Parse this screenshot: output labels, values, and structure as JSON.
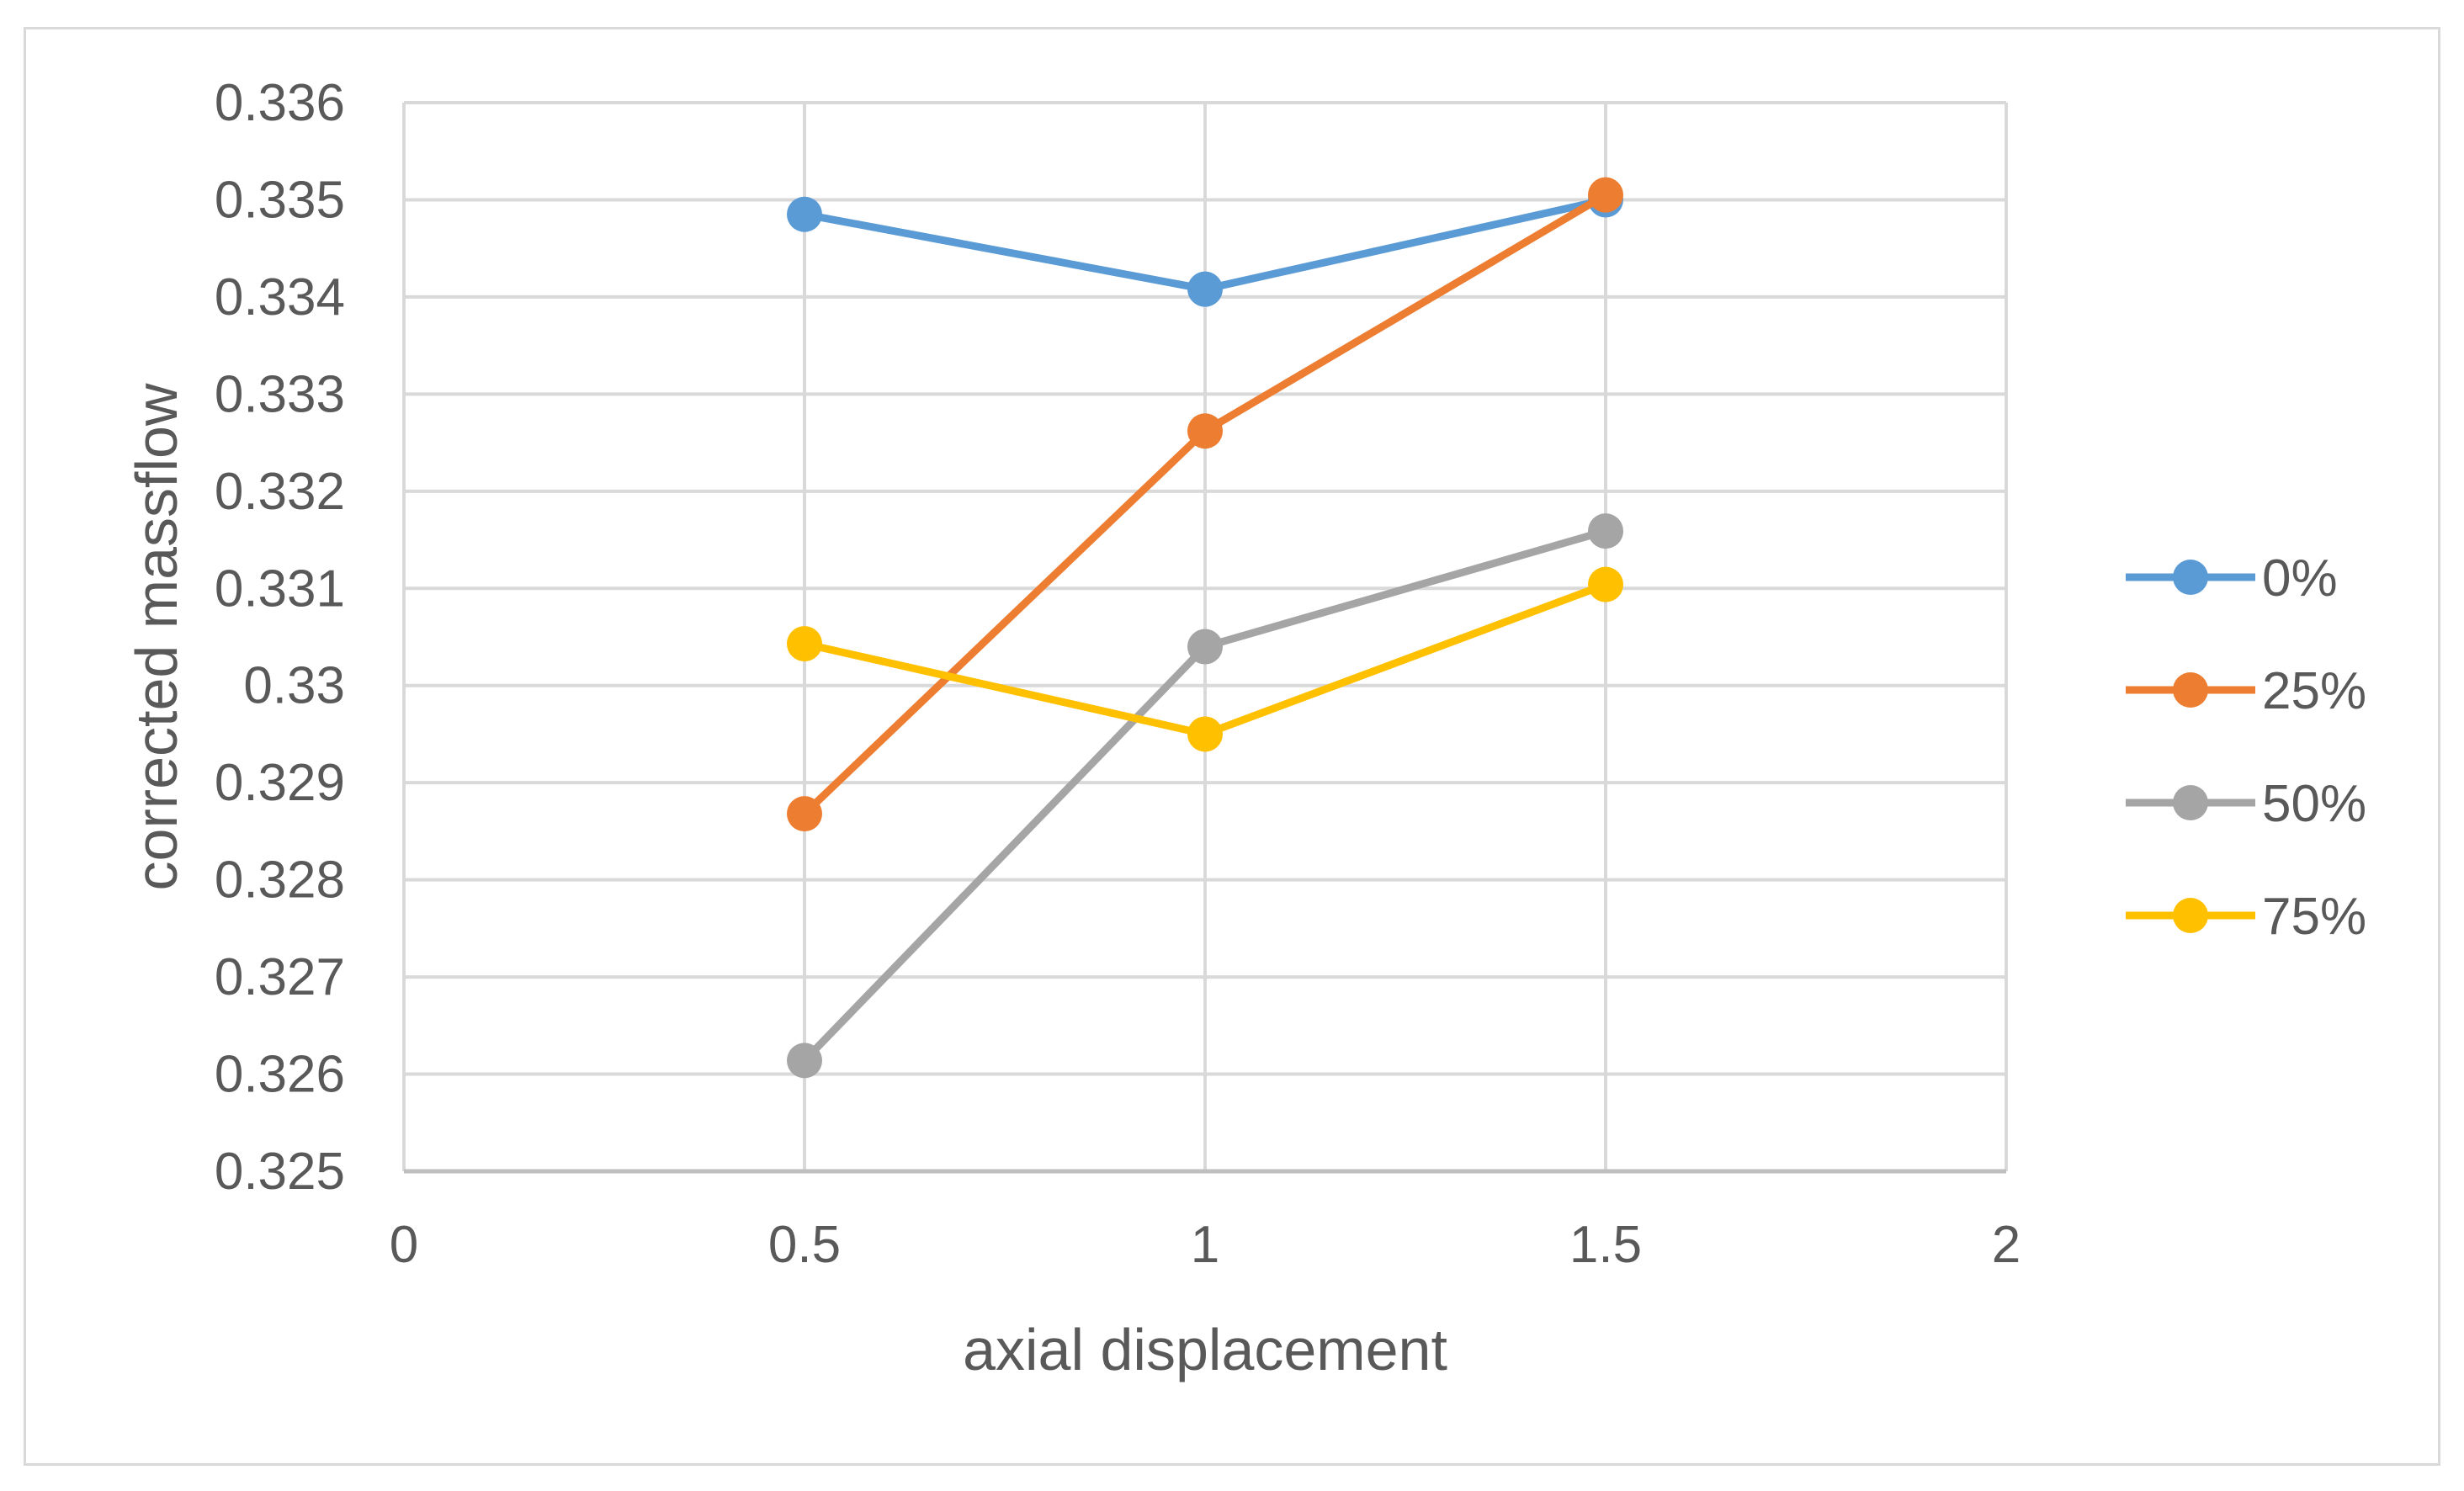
{
  "chart_data": {
    "type": "line",
    "xlabel": "axial displacement",
    "ylabel": "corrected massflow",
    "xlim": [
      0,
      2
    ],
    "ylim": [
      0.325,
      0.336
    ],
    "x_ticks": [
      0,
      0.5,
      1,
      1.5,
      2
    ],
    "x_tick_labels": [
      "0",
      "0.5",
      "1",
      "1.5",
      "2"
    ],
    "y_ticks": [
      0.325,
      0.326,
      0.327,
      0.328,
      0.329,
      0.33,
      0.331,
      0.332,
      0.333,
      0.334,
      0.335,
      0.336
    ],
    "y_tick_labels": [
      "0.325",
      "0.326",
      "0.327",
      "0.328",
      "0.329",
      "0.33",
      "0.331",
      "0.332",
      "0.333",
      "0.334",
      "0.335",
      "0.336"
    ],
    "grid": true,
    "legend_position": "right",
    "x": [
      0.5,
      1,
      1.5
    ],
    "series": [
      {
        "name": "0%",
        "color": "#5B9BD5",
        "values": [
          0.33485,
          0.33408,
          0.335
        ]
      },
      {
        "name": "25%",
        "color": "#ED7D31",
        "values": [
          0.32868,
          0.33262,
          0.33505
        ]
      },
      {
        "name": "50%",
        "color": "#A5A5A5",
        "values": [
          0.32614,
          0.3304,
          0.33159
        ]
      },
      {
        "name": "75%",
        "color": "#FFC000",
        "values": [
          0.33043,
          0.3295,
          0.33104
        ]
      }
    ]
  }
}
